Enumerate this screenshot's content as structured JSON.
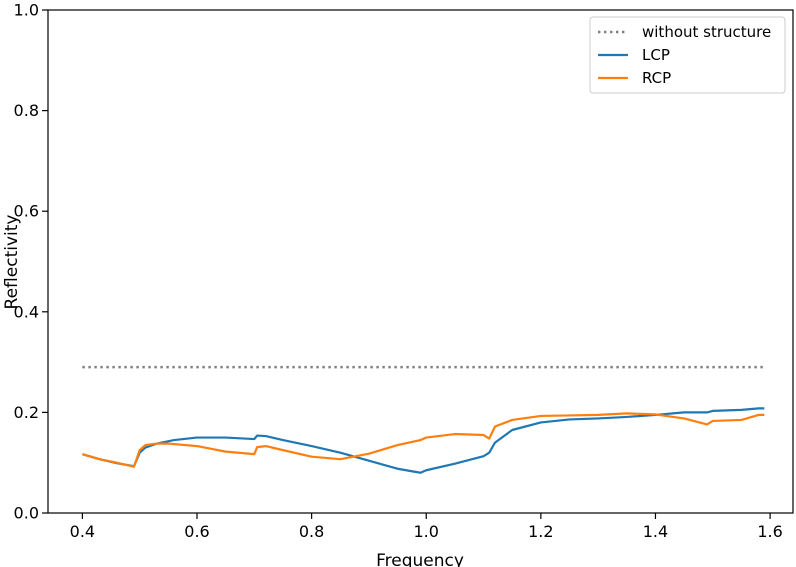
{
  "chart_data": {
    "type": "line",
    "title": "",
    "xlabel": "Frequency",
    "ylabel": "Reflectivity",
    "xlim": [
      0.34,
      1.64
    ],
    "ylim": [
      0.0,
      1.0
    ],
    "xticks": [
      "0.4",
      "0.6",
      "0.8",
      "1.0",
      "1.2",
      "1.4",
      "1.6"
    ],
    "yticks": [
      "0.0",
      "0.2",
      "0.4",
      "0.6",
      "0.8",
      "1.0"
    ],
    "grid": false,
    "legend_position": "top-right",
    "series": [
      {
        "name": "without structure",
        "style": "dotted",
        "color": "#7f7f7f",
        "x": [
          0.4,
          1.59
        ],
        "y": [
          0.29,
          0.29
        ]
      },
      {
        "name": "LCP",
        "style": "solid",
        "color": "#1f77b4",
        "x": [
          0.4,
          0.43,
          0.46,
          0.49,
          0.5,
          0.51,
          0.53,
          0.56,
          0.6,
          0.65,
          0.7,
          0.705,
          0.72,
          0.75,
          0.8,
          0.85,
          0.9,
          0.95,
          0.99,
          1.0,
          1.05,
          1.1,
          1.11,
          1.12,
          1.15,
          1.2,
          1.25,
          1.3,
          1.35,
          1.4,
          1.45,
          1.49,
          1.5,
          1.55,
          1.58,
          1.59
        ],
        "y": [
          0.117,
          0.107,
          0.099,
          0.093,
          0.12,
          0.13,
          0.138,
          0.145,
          0.15,
          0.15,
          0.147,
          0.154,
          0.153,
          0.145,
          0.133,
          0.12,
          0.104,
          0.088,
          0.08,
          0.085,
          0.098,
          0.113,
          0.12,
          0.14,
          0.165,
          0.18,
          0.186,
          0.188,
          0.191,
          0.195,
          0.2,
          0.2,
          0.203,
          0.205,
          0.208,
          0.208
        ]
      },
      {
        "name": "RCP",
        "style": "solid",
        "color": "#ff7f0e",
        "x": [
          0.4,
          0.43,
          0.46,
          0.49,
          0.5,
          0.51,
          0.53,
          0.55,
          0.6,
          0.65,
          0.7,
          0.705,
          0.72,
          0.75,
          0.8,
          0.85,
          0.9,
          0.95,
          0.99,
          1.0,
          1.05,
          1.1,
          1.11,
          1.12,
          1.15,
          1.2,
          1.25,
          1.3,
          1.35,
          1.4,
          1.45,
          1.49,
          1.5,
          1.55,
          1.58,
          1.59
        ],
        "y": [
          0.117,
          0.107,
          0.1,
          0.092,
          0.125,
          0.135,
          0.138,
          0.138,
          0.133,
          0.122,
          0.117,
          0.131,
          0.133,
          0.125,
          0.112,
          0.107,
          0.118,
          0.135,
          0.145,
          0.15,
          0.157,
          0.155,
          0.148,
          0.172,
          0.185,
          0.193,
          0.194,
          0.195,
          0.198,
          0.196,
          0.188,
          0.176,
          0.183,
          0.185,
          0.195,
          0.195
        ]
      }
    ]
  }
}
